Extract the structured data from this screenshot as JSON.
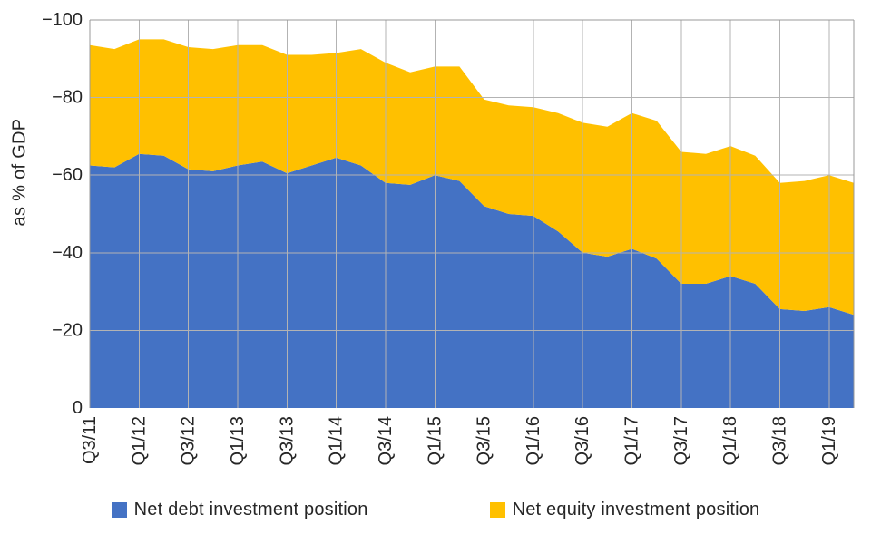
{
  "chart_data": {
    "type": "area",
    "stacked": true,
    "title": "",
    "xlabel": "",
    "ylabel": "as % of GDP",
    "ylim": [
      0,
      -100
    ],
    "y_inverted_axis": true,
    "grid": true,
    "legend_position": "bottom",
    "x_frequency": "quarterly",
    "x_tick_labels": [
      "Q3/11",
      "Q1/12",
      "Q3/12",
      "Q1/13",
      "Q3/13",
      "Q1/14",
      "Q3/14",
      "Q1/15",
      "Q3/15",
      "Q1/16",
      "Q3/16",
      "Q1/17",
      "Q3/17",
      "Q1/18",
      "Q3/18",
      "Q1/19"
    ],
    "x_ticks_every_n_points": 2,
    "y_tick_labels": [
      "0",
      "−20",
      "−40",
      "−60",
      "−80",
      "−100"
    ],
    "y_tick_values": [
      0,
      -20,
      -40,
      -60,
      -80,
      -100
    ],
    "series": [
      {
        "name": "Net debt investment position",
        "color": "#4472C4",
        "values": [
          -62.5,
          -62,
          -65.5,
          -65,
          -61.5,
          -61,
          -62.5,
          -63.5,
          -60.5,
          -62.5,
          -64.5,
          -62.5,
          -58,
          -57.5,
          -60,
          -58.5,
          -52,
          -50,
          -49.5,
          -45.5,
          -40,
          -39,
          -41,
          -38.5,
          -32,
          -32,
          -34,
          -32,
          -25.5,
          -25,
          -26,
          -24
        ]
      },
      {
        "name": "Net equity investment position",
        "color": "#FFC000",
        "values": [
          -31,
          -30.5,
          -29.5,
          -30,
          -31.5,
          -31.5,
          -31,
          -30,
          -30.5,
          -28.5,
          -27,
          -30,
          -31,
          -29,
          -28,
          -29.5,
          -27.5,
          -28,
          -28,
          -30.5,
          -33.5,
          -33.5,
          -35,
          -35.5,
          -34,
          -33.5,
          -33.5,
          -33,
          -32.5,
          -33.5,
          -34,
          -34
        ]
      }
    ]
  },
  "colors": {
    "grid": "#b3b3b3",
    "frame": "#989898",
    "text": "#262626",
    "background": "#ffffff"
  }
}
